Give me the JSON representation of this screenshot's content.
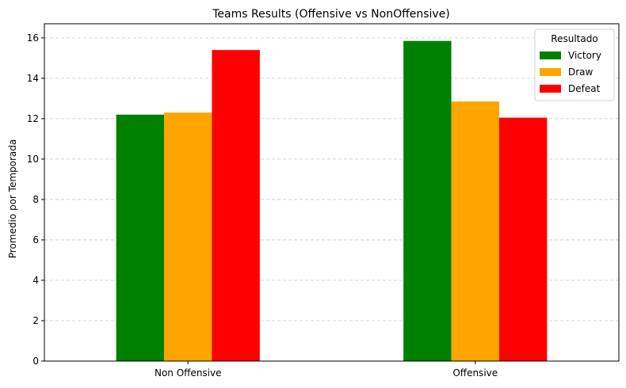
{
  "chart_data": {
    "type": "bar",
    "title": "Teams Results (Offensive vs NonOffensive)",
    "xlabel": "",
    "ylabel": "Promedio por Temporada",
    "categories": [
      "Non Offensive",
      "Offensive"
    ],
    "series": [
      {
        "name": "Victory",
        "color": "#008000",
        "values": [
          12.2,
          15.85
        ]
      },
      {
        "name": "Draw",
        "color": "#ffa500",
        "values": [
          12.3,
          12.85
        ]
      },
      {
        "name": "Defeat",
        "color": "#ff0000",
        "values": [
          15.4,
          12.05
        ]
      }
    ],
    "ylim": [
      0,
      16.7
    ],
    "yticks": [
      0,
      2,
      4,
      6,
      8,
      10,
      12,
      14,
      16
    ],
    "grid": "y-dashed",
    "legend": {
      "title": "Resultado",
      "position": "top-right"
    }
  }
}
